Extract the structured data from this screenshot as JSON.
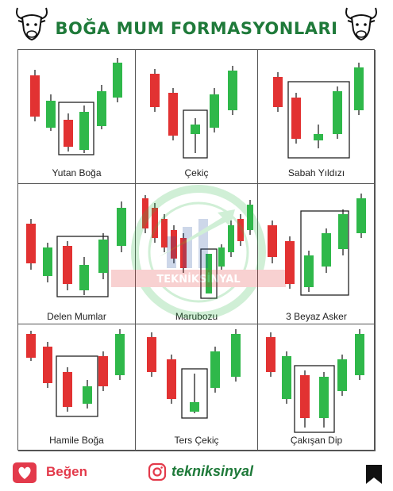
{
  "title": "BOĞA MUM FORMASYONLARI",
  "colors": {
    "bull": "#2fb84a",
    "bear": "#e23232",
    "title": "#1f7a3a",
    "accent": "#e33a4b"
  },
  "icons": {
    "left_logo": "bull-head-icon",
    "right_logo": "bull-head-icon",
    "like": "heart-icon",
    "instagram": "instagram-icon",
    "save": "bookmark-icon"
  },
  "patterns": [
    {
      "label": "Yutan Boğa"
    },
    {
      "label": "Çekiç"
    },
    {
      "label": "Sabah Yıldızı"
    },
    {
      "label": "Delen Mumlar"
    },
    {
      "label": "Marubozu"
    },
    {
      "label": "3 Beyaz Asker"
    },
    {
      "label": "Hamile Boğa"
    },
    {
      "label": "Ters Çekiç"
    },
    {
      "label": "Çakışan Dip"
    }
  ],
  "watermark": "TEKNİKSİNYAL",
  "footer": {
    "like_label": "Beğen",
    "instagram_handle": "tekniksinyal"
  }
}
